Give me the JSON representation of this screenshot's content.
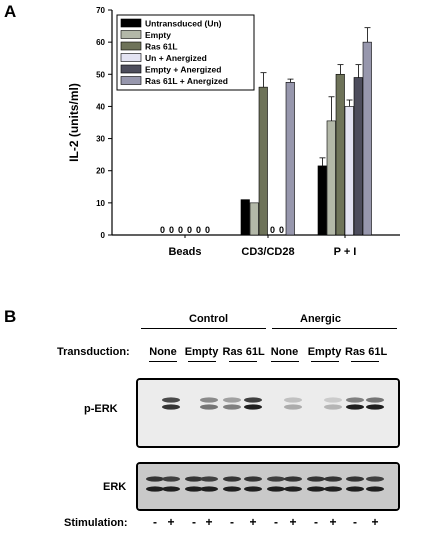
{
  "figure": {
    "panel_a_letter": "A",
    "panel_b_letter": "B"
  },
  "chart_data": {
    "type": "bar",
    "ylabel": "IL-2 (units/ml)",
    "xlabel": "",
    "ylim": [
      0,
      70
    ],
    "yticks": [
      0,
      10,
      20,
      30,
      40,
      50,
      60,
      70
    ],
    "categories": [
      "Beads",
      "CD3/CD28",
      "P + I"
    ],
    "legend_position": "top-left",
    "colors": [
      "#000000",
      "#b3b8a8",
      "#6e7359",
      "#e3e3f2",
      "#4d4d5c",
      "#9797ad"
    ],
    "series": [
      {
        "name": "Untransduced (Un)",
        "values": [
          0,
          11,
          21.5
        ],
        "errors": [
          0,
          0,
          2.5
        ]
      },
      {
        "name": "Empty",
        "values": [
          0,
          10,
          35.5
        ],
        "errors": [
          0,
          0,
          7.5
        ]
      },
      {
        "name": "Ras 61L",
        "values": [
          0,
          46,
          50
        ],
        "errors": [
          0,
          4.5,
          3
        ]
      },
      {
        "name": "Un + Anergized",
        "values": [
          0,
          0,
          40
        ],
        "errors": [
          0,
          0,
          2
        ]
      },
      {
        "name": "Empty + Anergized",
        "values": [
          0,
          0,
          49
        ],
        "errors": [
          0,
          0,
          4
        ]
      },
      {
        "name": "Ras 61L + Anergized",
        "values": [
          0,
          47.5,
          60
        ],
        "errors": [
          0,
          1,
          4.5
        ]
      }
    ],
    "zero_labels": {
      "Beads": [
        "0",
        "0",
        "0",
        "0",
        "0",
        "0"
      ],
      "CD3/CD28": [
        "",
        "",
        "",
        "0",
        "0",
        ""
      ]
    }
  },
  "blot": {
    "group_control": "Control",
    "group_anergic": "Anergic",
    "transduction_label": "Transduction:",
    "transductions": [
      "None",
      "Empty",
      "Ras 61L",
      "None",
      "Empty",
      "Ras 61L"
    ],
    "perk_label": "p-ERK",
    "erk_label": "ERK",
    "stimulation_label": "Stimulation:",
    "stimulation": [
      "-",
      "+",
      "-",
      "+",
      "-",
      "+",
      "-",
      "+",
      "-",
      "+",
      "-",
      "+"
    ],
    "perk_upper_intensity": [
      0,
      0.75,
      0,
      0.45,
      0.35,
      0.8,
      0,
      0.2,
      0,
      0.15,
      0.5,
      0.55
    ],
    "perk_lower_intensity": [
      0,
      0.85,
      0,
      0.55,
      0.5,
      0.95,
      0,
      0.3,
      0,
      0.25,
      0.95,
      0.95
    ],
    "erk_upper_intensity": [
      0.85,
      0.8,
      0.85,
      0.8,
      0.85,
      0.85,
      0.8,
      0.85,
      0.85,
      0.85,
      0.85,
      0.8
    ],
    "erk_lower_intensity": [
      0.95,
      0.95,
      0.95,
      0.95,
      0.95,
      0.95,
      0.95,
      0.95,
      0.95,
      0.95,
      0.95,
      0.95
    ]
  }
}
